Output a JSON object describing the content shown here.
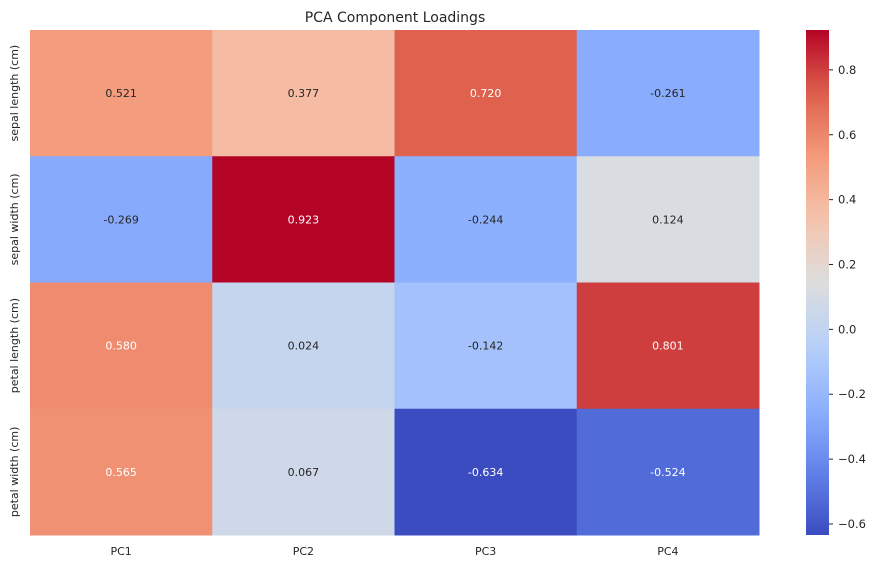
{
  "chart_data": {
    "type": "heatmap",
    "title": "PCA Component Loadings",
    "x_categories": [
      "PC1",
      "PC2",
      "PC3",
      "PC4"
    ],
    "y_categories": [
      "sepal length (cm)",
      "sepal width (cm)",
      "petal length (cm)",
      "petal width (cm)"
    ],
    "values": [
      [
        0.521,
        0.377,
        0.72,
        -0.261
      ],
      [
        -0.269,
        0.923,
        -0.244,
        0.124
      ],
      [
        0.58,
        0.024,
        -0.142,
        0.801
      ],
      [
        0.565,
        0.067,
        -0.634,
        -0.524
      ]
    ],
    "value_labels": [
      [
        "0.521",
        "0.377",
        "0.720",
        "-0.261"
      ],
      [
        "-0.269",
        "0.923",
        "-0.244",
        "0.124"
      ],
      [
        "0.580",
        "0.024",
        "-0.142",
        "0.801"
      ],
      [
        "0.565",
        "0.067",
        "-0.634",
        "-0.524"
      ]
    ],
    "colormap": "coolwarm",
    "vmin": -0.634,
    "vmax": 0.923,
    "colorbar_ticks": [
      -0.6,
      -0.4,
      -0.2,
      0.0,
      0.2,
      0.4,
      0.6,
      0.8
    ],
    "colorbar_tick_labels": [
      "−0.6",
      "−0.4",
      "−0.2",
      "0.0",
      "0.2",
      "0.4",
      "0.6",
      "0.8"
    ],
    "xlabel": "",
    "ylabel": "",
    "grid": false,
    "legend": "colorbar-right"
  }
}
